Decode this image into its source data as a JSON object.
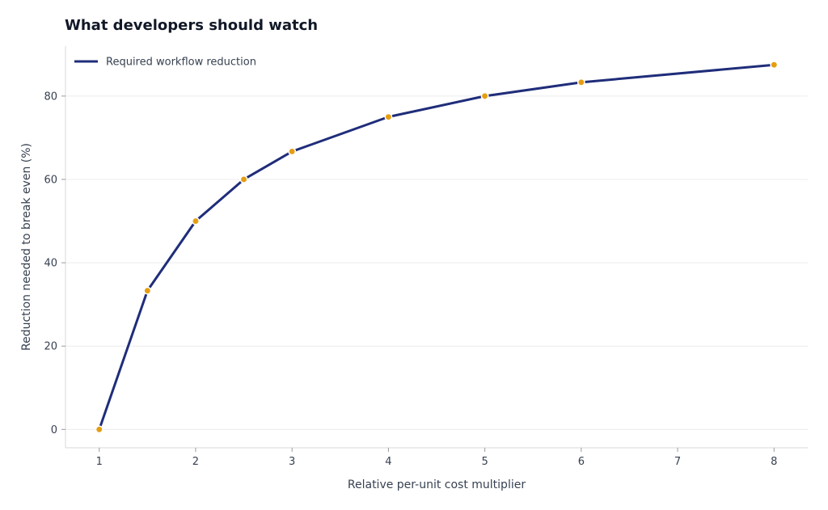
{
  "chart_data": {
    "type": "line",
    "title": "What developers should watch",
    "xlabel": "Relative per-unit cost multiplier",
    "ylabel": "Reduction needed to break even (%)",
    "xlim": [
      0.65,
      8.35
    ],
    "ylim": [
      -4.4,
      92
    ],
    "x_ticks": [
      1,
      2,
      3,
      4,
      5,
      6,
      7,
      8
    ],
    "y_ticks": [
      0,
      20,
      40,
      60,
      80
    ],
    "grid": "horizontal",
    "legend_position": "top-left",
    "series": [
      {
        "name": "Required workflow reduction",
        "line_color": "#1f2d7a",
        "marker_color": "#e59e11",
        "x": [
          1,
          1.5,
          2,
          2.5,
          3,
          4,
          5,
          6,
          8
        ],
        "y": [
          0,
          33.3,
          50,
          60,
          66.7,
          75,
          80,
          83.3,
          87.5
        ]
      }
    ]
  }
}
